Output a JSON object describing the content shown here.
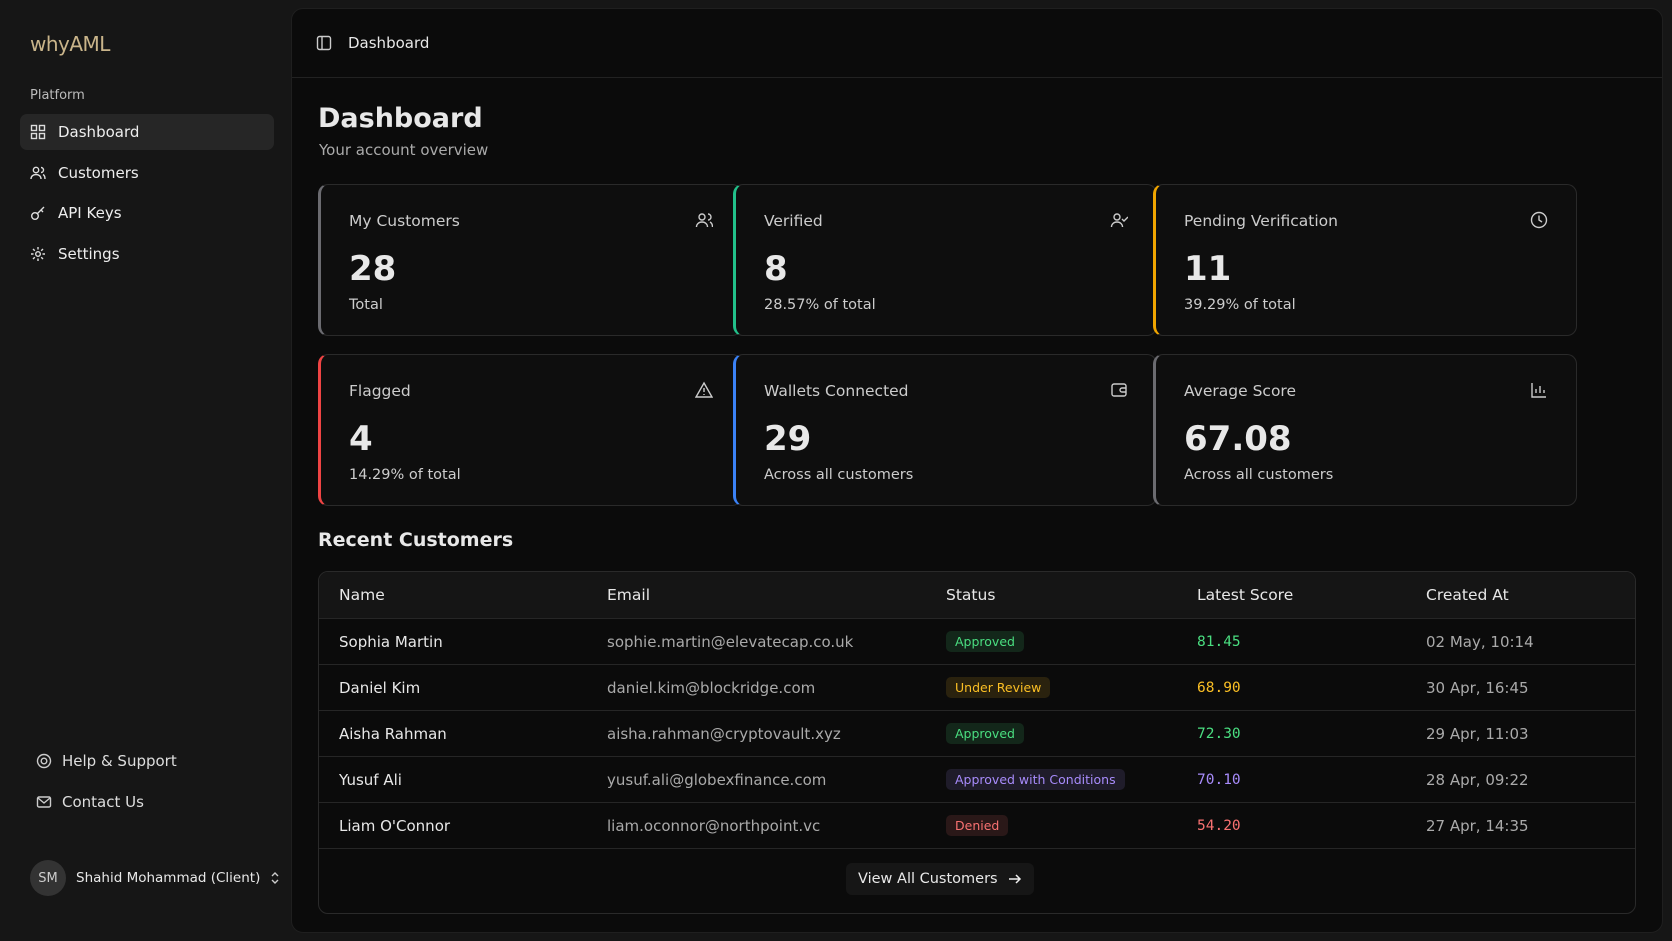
{
  "sidebar": {
    "logo": "whyAML",
    "section": "Platform",
    "nav": [
      "Dashboard",
      "Customers",
      "API Keys",
      "Settings"
    ],
    "footer_links": [
      "Help & Support",
      "Contact Us"
    ],
    "user": {
      "initials": "SM",
      "name": "Shahid Mohammad (Client)"
    }
  },
  "header": {
    "breadcrumb": "Dashboard"
  },
  "page": {
    "title": "Dashboard",
    "subtitle": "Your account overview"
  },
  "cards": [
    {
      "label": "My Customers",
      "value": "28",
      "note": "Total",
      "accent": "#6b6b70"
    },
    {
      "label": "Verified",
      "value": "8",
      "note": "28.57% of total",
      "accent": "#22c08a"
    },
    {
      "label": "Pending Verification",
      "value": "11",
      "note": "39.29% of total",
      "accent": "#f0a500"
    },
    {
      "label": "Flagged",
      "value": "4",
      "note": "14.29% of total",
      "accent": "#ef4444"
    },
    {
      "label": "Wallets Connected",
      "value": "29",
      "note": "Across all customers",
      "accent": "#3b82f6"
    },
    {
      "label": "Average Score",
      "value": "67.08",
      "note": "Across all customers",
      "accent": "#6b6b70"
    }
  ],
  "recent": {
    "title": "Recent Customers",
    "columns": [
      "Name",
      "Email",
      "Status",
      "Latest Score",
      "Created At"
    ],
    "rows": [
      {
        "name": "Sophia Martin",
        "email": "sophie.martin@elevatecap.co.uk",
        "status": "Approved",
        "score": "81.45",
        "created": "02 May, 10:14",
        "color": "#4ade80"
      },
      {
        "name": "Daniel Kim",
        "email": "daniel.kim@blockridge.com",
        "status": "Under Review",
        "score": "68.90",
        "created": "30 Apr, 16:45",
        "color": "#fbbf24"
      },
      {
        "name": "Aisha Rahman",
        "email": "aisha.rahman@cryptovault.xyz",
        "status": "Approved",
        "score": "72.30",
        "created": "29 Apr, 11:03",
        "color": "#4ade80"
      },
      {
        "name": "Yusuf Ali",
        "email": "yusuf.ali@globexfinance.com",
        "status": "Approved with Conditions",
        "score": "70.10",
        "created": "28 Apr, 09:22",
        "color": "#a78bfa"
      },
      {
        "name": "Liam O'Connor",
        "email": "liam.oconnor@northpoint.vc",
        "status": "Denied",
        "score": "54.20",
        "created": "27 Apr, 14:35",
        "color": "#f87171"
      }
    ],
    "button": "View All Customers"
  }
}
